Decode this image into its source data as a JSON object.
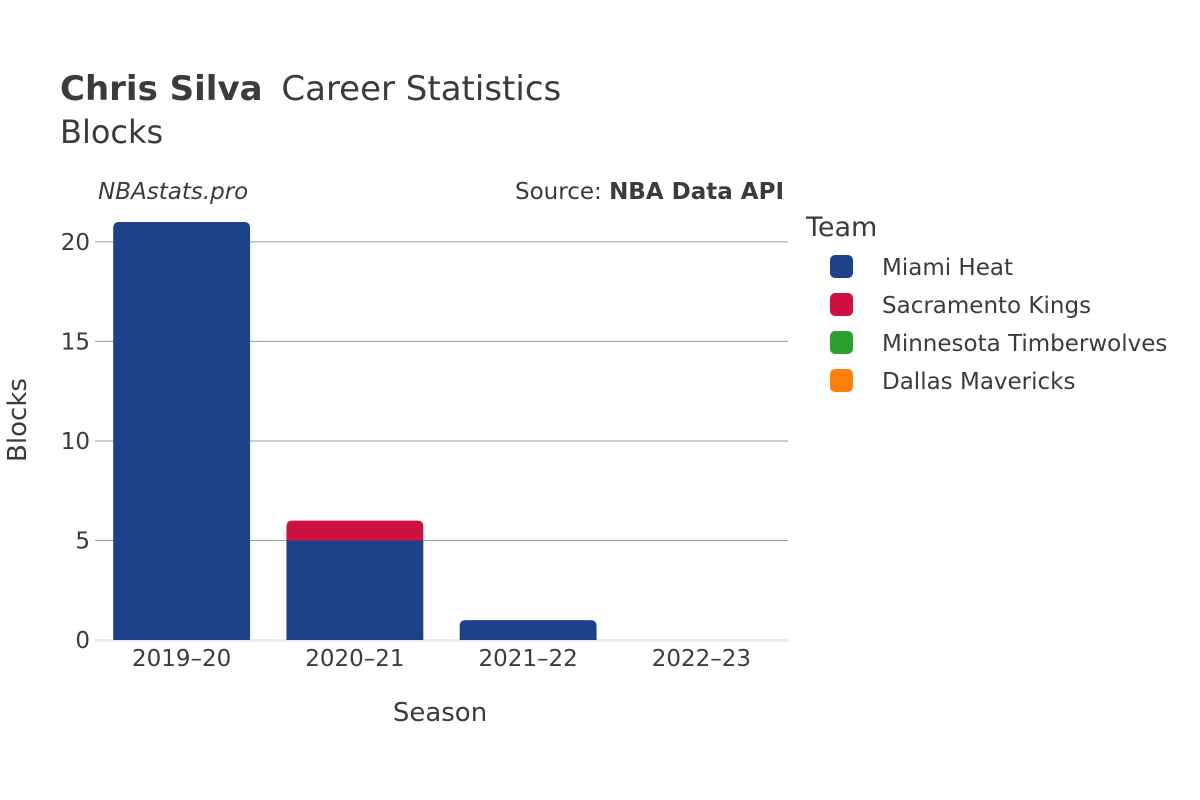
{
  "header": {
    "title_name": "Chris Silva",
    "title_rest": "Career Statistics",
    "subtitle": "Blocks",
    "watermark": "NBAstats.pro",
    "source_prefix": "Source: ",
    "source_name": "NBA Data API"
  },
  "legend": {
    "title": "Team"
  },
  "chart_data": {
    "type": "bar",
    "stacked": true,
    "title": "Chris Silva Career Statistics",
    "subtitle": "Blocks",
    "xlabel": "Season",
    "ylabel": "Blocks",
    "categories": [
      "2019–20",
      "2020–21",
      "2021–22",
      "2022–23"
    ],
    "ylim": [
      0,
      21
    ],
    "yticks": [
      0,
      5,
      10,
      15,
      20
    ],
    "grid": true,
    "legend_position": "right",
    "series": [
      {
        "name": "Miami Heat",
        "color": "#1d428a",
        "values": [
          21,
          5,
          1,
          0
        ]
      },
      {
        "name": "Sacramento Kings",
        "color": "#ce1141",
        "values": [
          0,
          1,
          0,
          0
        ]
      },
      {
        "name": "Minnesota Timberwolves",
        "color": "#2ca02c",
        "values": [
          0,
          0,
          0,
          0
        ]
      },
      {
        "name": "Dallas Mavericks",
        "color": "#ff7f0e",
        "values": [
          0,
          0,
          0,
          0
        ]
      }
    ]
  }
}
